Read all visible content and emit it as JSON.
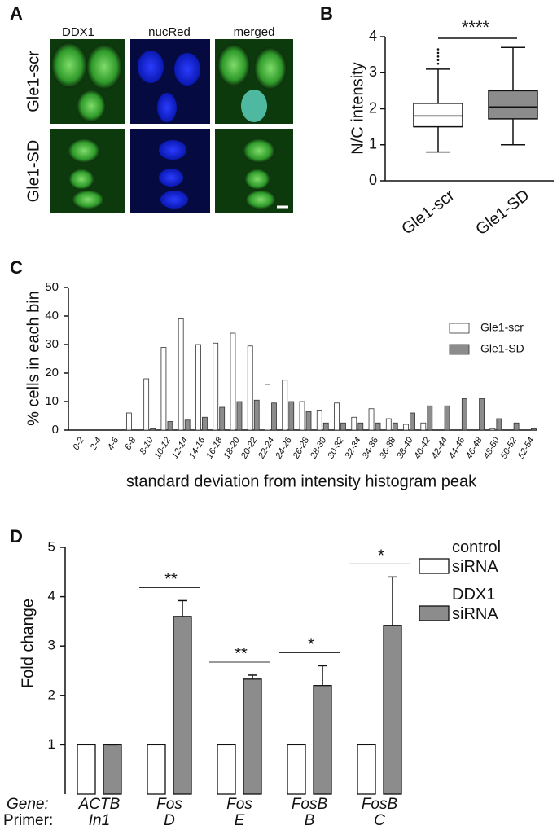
{
  "figure_a": {
    "panel_label": "A",
    "columns": [
      "DDX1",
      "nucRed",
      "merged"
    ],
    "rows": [
      "Gle1-scr",
      "Gle1-SD"
    ]
  },
  "chart_data": [
    {
      "type": "box",
      "panel_label": "B",
      "ylabel": "N/C intensity",
      "categories": [
        "Gle1-scr",
        "Gle1-SD"
      ],
      "colors": [
        "#ffffff",
        "#8c8c8c"
      ],
      "boxes": [
        {
          "whisker_low": 0.8,
          "q1": 1.5,
          "median": 1.8,
          "q3": 2.15,
          "whisker_high": 3.1,
          "outliers": [
            3.25,
            3.35,
            3.45,
            3.55,
            3.65
          ]
        },
        {
          "whisker_low": 1.0,
          "q1": 1.72,
          "median": 2.05,
          "q3": 2.5,
          "whisker_high": 3.7,
          "outliers": []
        }
      ],
      "significance": "****",
      "ylim": [
        0,
        4
      ],
      "yticks": [
        0,
        1,
        2,
        3,
        4
      ]
    },
    {
      "type": "bar",
      "panel_label": "C",
      "ylabel": "% cells in each bin",
      "xlabel": "standard deviation from intensity histogram peak",
      "categories": [
        "0-2",
        "2-4",
        "4-6",
        "6-8",
        "8-10",
        "10-12",
        "12-14",
        "14-16",
        "16-18",
        "18-20",
        "20-22",
        "22-24",
        "24-26",
        "26-28",
        "28-30",
        "30-32",
        "32-34",
        "34-36",
        "36-38",
        "38-40",
        "40-42",
        "42-44",
        "44-46",
        "46-48",
        "48-50",
        "50-52",
        "52-54"
      ],
      "series": [
        {
          "name": "Gle1-scr",
          "color": "#ffffff",
          "values": [
            0,
            0,
            0,
            6,
            18,
            29,
            39,
            30,
            30.5,
            34,
            29.5,
            16,
            17.5,
            10,
            7,
            9.5,
            4.5,
            7.5,
            4,
            2,
            2.5,
            0,
            0,
            0,
            0.5,
            0,
            0
          ]
        },
        {
          "name": "Gle1-SD",
          "color": "#8c8c8c",
          "values": [
            0,
            0,
            0,
            0,
            0.5,
            3,
            3.5,
            4.5,
            8,
            10,
            10.5,
            9.5,
            10,
            6.5,
            2.5,
            2.5,
            2.5,
            2.5,
            2.5,
            6,
            8.5,
            8.5,
            11,
            11,
            4,
            2.5,
            0.5
          ]
        }
      ],
      "ylim": [
        0,
        50
      ],
      "yticks": [
        0,
        10,
        20,
        30,
        40,
        50
      ]
    },
    {
      "type": "bar",
      "panel_label": "D",
      "ylabel": "Fold change",
      "category_label": "Gene:",
      "primer_label": "Primer:",
      "categories": [
        "ACTB",
        "Fos",
        "Fos",
        "FosB",
        "FosB"
      ],
      "primers": [
        "In1",
        "D",
        "E",
        "B",
        "C"
      ],
      "series": [
        {
          "name": "control siRNA",
          "color": "#ffffff",
          "values": [
            1,
            1,
            1,
            1,
            1
          ]
        },
        {
          "name": "DDX1 siRNA",
          "color": "#8c8c8c",
          "values": [
            1,
            3.6,
            2.33,
            2.2,
            3.42
          ],
          "errors": [
            0,
            0.32,
            0.08,
            0.4,
            0.98
          ]
        }
      ],
      "significance": [
        null,
        "**",
        "**",
        "*",
        "*"
      ],
      "ylim": [
        0,
        5
      ],
      "yticks": [
        1,
        2,
        3,
        4,
        5
      ]
    }
  ]
}
